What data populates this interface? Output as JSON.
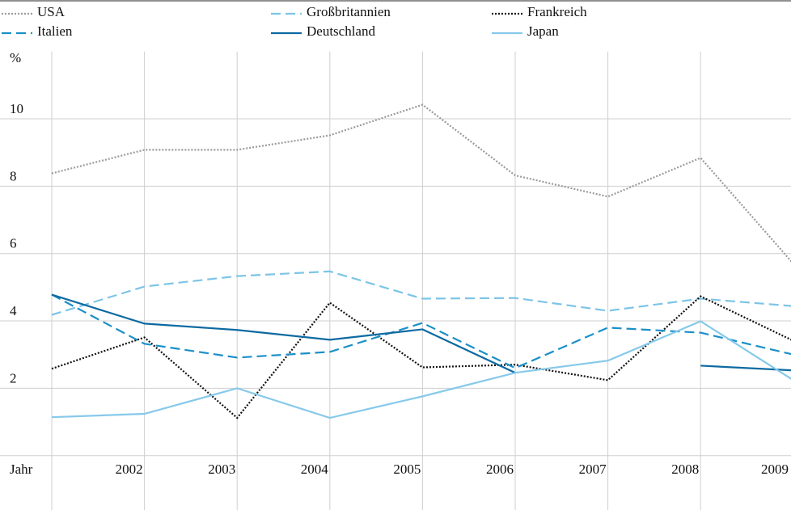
{
  "chart_data": {
    "type": "line",
    "y_label": "%",
    "x_label": "Jahr",
    "categories": [
      null,
      "2002",
      "2003",
      "2004",
      "2005",
      "2006",
      "2007",
      "2008",
      "2009"
    ],
    "ylim": [
      0,
      12
    ],
    "yticks": [
      2,
      4,
      6,
      8,
      10
    ],
    "grid": true,
    "series": [
      {
        "name": "USA",
        "color": "#9a9a9a",
        "style": "dotted",
        "values": [
          8.38,
          9.08,
          9.08,
          9.51,
          10.42,
          8.32,
          7.69,
          8.84,
          5.7
        ]
      },
      {
        "name": "Großbritannien",
        "color": "#7cc4e6",
        "style": "dashed",
        "values": [
          4.18,
          5.02,
          5.33,
          5.47,
          4.66,
          4.68,
          4.3,
          4.66,
          4.44
        ]
      },
      {
        "name": "Frankreich",
        "color": "#111111",
        "style": "dotted",
        "values": [
          2.58,
          3.51,
          1.12,
          4.54,
          2.62,
          2.7,
          2.24,
          4.73,
          3.41
        ]
      },
      {
        "name": "Italien",
        "color": "#1b8fc8",
        "style": "dashed",
        "values": [
          4.78,
          3.32,
          2.91,
          3.08,
          3.94,
          2.6,
          3.8,
          3.65,
          3.0
        ]
      },
      {
        "name": "Deutschland",
        "color": "#0d6aa2",
        "style": "solid",
        "values": [
          4.78,
          3.92,
          3.73,
          3.44,
          3.75,
          2.46,
          null,
          2.67,
          2.53
        ]
      },
      {
        "name": "Japan",
        "color": "#86c9ea",
        "style": "solid",
        "values": [
          1.14,
          1.24,
          2.0,
          1.12,
          1.76,
          2.46,
          2.82,
          3.99,
          2.24
        ]
      }
    ]
  }
}
